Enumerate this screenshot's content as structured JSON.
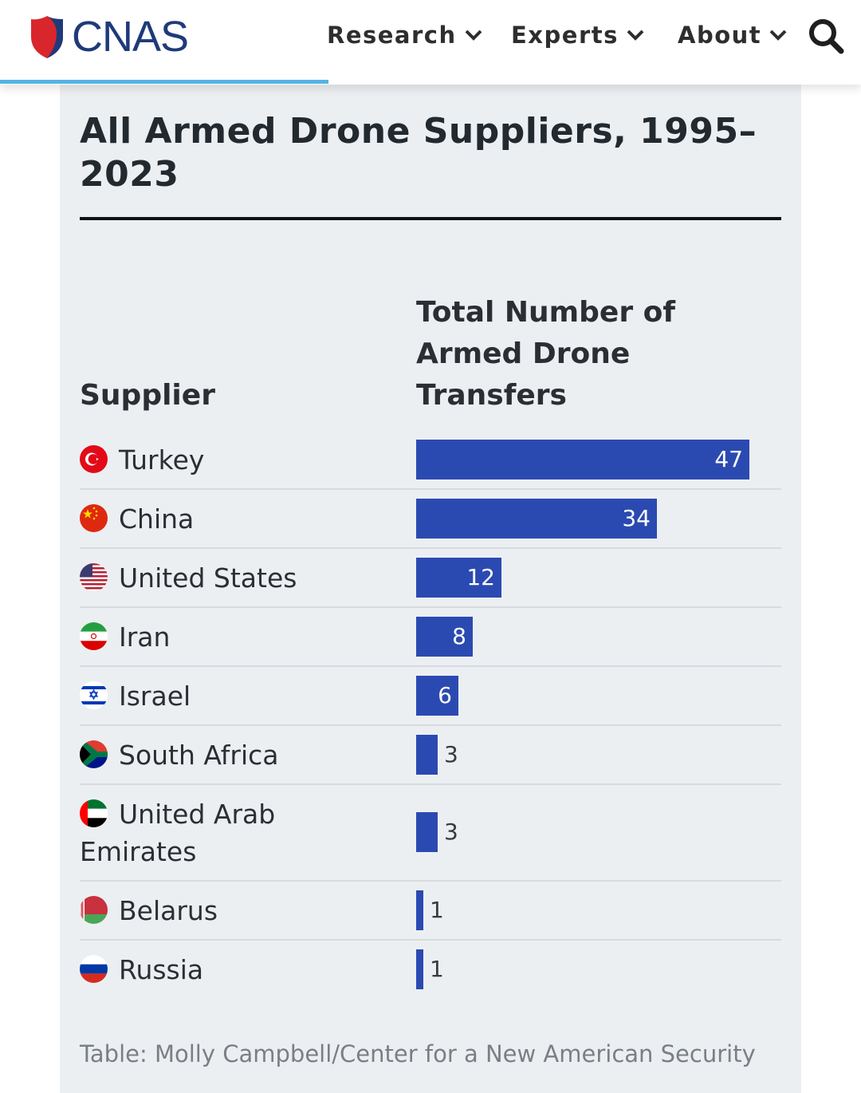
{
  "header": {
    "logo_text": "CNAS",
    "nav": [
      {
        "label": "Research"
      },
      {
        "label": "Experts"
      },
      {
        "label": "About"
      }
    ],
    "search_icon": "search-icon"
  },
  "card": {
    "title": "All Armed Drone Suppliers, 1995–2023",
    "col_supplier": "Supplier",
    "col_total": "Total Number of Armed Drone Transfers",
    "source": "Table: Molly Campbell/Center for a New American Security"
  },
  "colors": {
    "bar": "#2b4ab1",
    "brand_blue": "#1f3a7a",
    "brand_red": "#d9262c",
    "accent_line": "#55b3e3"
  },
  "chart_data": {
    "type": "bar",
    "orientation": "horizontal",
    "title": "All Armed Drone Suppliers, 1995–2023",
    "xlabel": "Total Number of Armed Drone Transfers",
    "ylabel": "Supplier",
    "categories": [
      "Turkey",
      "China",
      "United States",
      "Iran",
      "Israel",
      "South Africa",
      "United Arab Emirates",
      "Belarus",
      "Russia"
    ],
    "values": [
      47,
      34,
      12,
      8,
      6,
      3,
      3,
      1,
      1
    ],
    "flags": [
      "turkey-flag-icon",
      "china-flag-icon",
      "us-flag-icon",
      "iran-flag-icon",
      "israel-flag-icon",
      "south-africa-flag-icon",
      "uae-flag-icon",
      "belarus-flag-icon",
      "russia-flag-icon"
    ],
    "grid": false,
    "legend": "none"
  }
}
